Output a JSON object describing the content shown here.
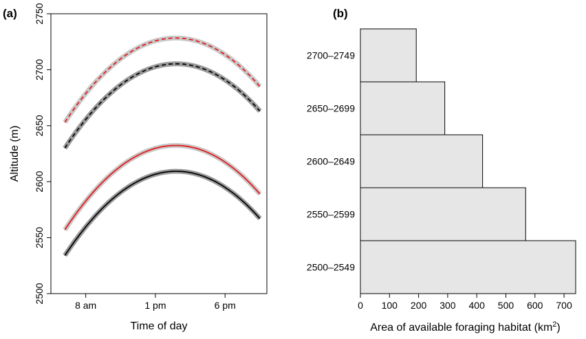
{
  "chart_data": [
    {
      "type": "line",
      "panel_label": "(a)",
      "xlabel": "Time of day",
      "ylabel": "Altitude (m)",
      "ylim": [
        2500,
        2750
      ],
      "yticks": [
        2500,
        2550,
        2600,
        2650,
        2700,
        2750
      ],
      "xlim": [
        5.5,
        21
      ],
      "xticks": [
        {
          "value": 8,
          "label": "8 am"
        },
        {
          "value": 13,
          "label": "1 pm"
        },
        {
          "value": 18,
          "label": "6 pm"
        }
      ],
      "series": [
        {
          "style": "dashed",
          "color": "#e41a1c",
          "band": true,
          "x": [
            6.5,
            15,
            20.5
          ],
          "y": [
            2653,
            2728,
            2685
          ]
        },
        {
          "style": "dashed",
          "color": "#000000",
          "band": true,
          "x": [
            6.5,
            15,
            20.5
          ],
          "y": [
            2630,
            2705,
            2663
          ]
        },
        {
          "style": "solid",
          "color": "#e41a1c",
          "band": true,
          "x": [
            6.5,
            15,
            20.5
          ],
          "y": [
            2557,
            2632,
            2589
          ]
        },
        {
          "style": "solid",
          "color": "#000000",
          "band": true,
          "x": [
            6.5,
            15,
            20.5
          ],
          "y": [
            2534,
            2609,
            2567
          ]
        }
      ]
    },
    {
      "type": "bar",
      "orientation": "horizontal",
      "panel_label": "(b)",
      "xlabel": "Area of available foraging habitat (km",
      "xlabel_sup": "2",
      "xlabel_end": ")",
      "xlim": [
        0,
        740
      ],
      "xticks": [
        0,
        100,
        200,
        300,
        400,
        500,
        600,
        700
      ],
      "categories": [
        "2700–2749",
        "2650–2699",
        "2600–2649",
        "2550–2599",
        "2500–2549"
      ],
      "values": [
        192,
        290,
        420,
        568,
        740
      ],
      "bar_color": "#e6e6e6"
    }
  ]
}
